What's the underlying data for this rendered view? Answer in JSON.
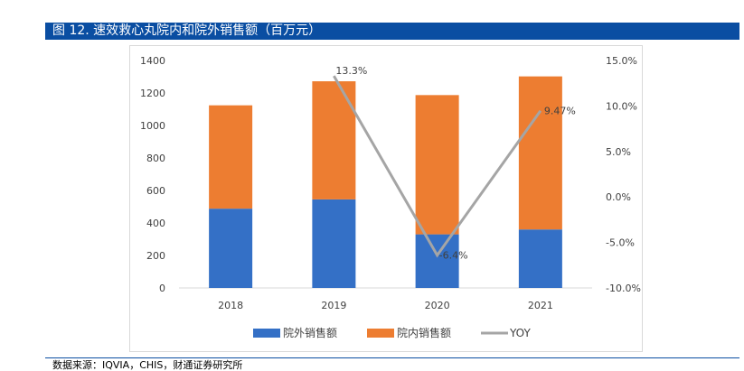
{
  "header": {
    "title": "图 12. 速效救心丸院内和院外销售额（百万元）"
  },
  "source": {
    "text": "数据来源：IQVIA，CHIS，财通证券研究所"
  },
  "colors": {
    "outpatient": "#3470c6",
    "inpatient": "#ed7d31",
    "yoy": "#a5a5a5",
    "header_bg": "#0a4ea2"
  },
  "chart_data": {
    "type": "bar",
    "stacked": true,
    "categories": [
      "2018",
      "2019",
      "2020",
      "2021"
    ],
    "series": [
      {
        "name": "院外销售额",
        "axis": "left",
        "values": [
          488,
          545,
          330,
          360
        ]
      },
      {
        "name": "院内销售额",
        "axis": "left",
        "values": [
          636,
          727,
          857,
          942
        ]
      },
      {
        "name": "YOY",
        "type": "line",
        "axis": "right",
        "values": [
          null,
          13.3,
          -6.4,
          9.47
        ]
      }
    ],
    "data_labels": [
      "13.3%",
      "-6.4%",
      "9.47%"
    ],
    "y_left": {
      "ylim": [
        0,
        1400
      ],
      "ticks": [
        "0",
        "200",
        "400",
        "600",
        "800",
        "1000",
        "1200",
        "1400"
      ]
    },
    "y_right": {
      "ylim": [
        -10,
        15
      ],
      "ticks": [
        "-10.0%",
        "-5.0%",
        "0.0%",
        "5.0%",
        "10.0%",
        "15.0%"
      ]
    },
    "grid": false,
    "legend_position": "bottom"
  }
}
